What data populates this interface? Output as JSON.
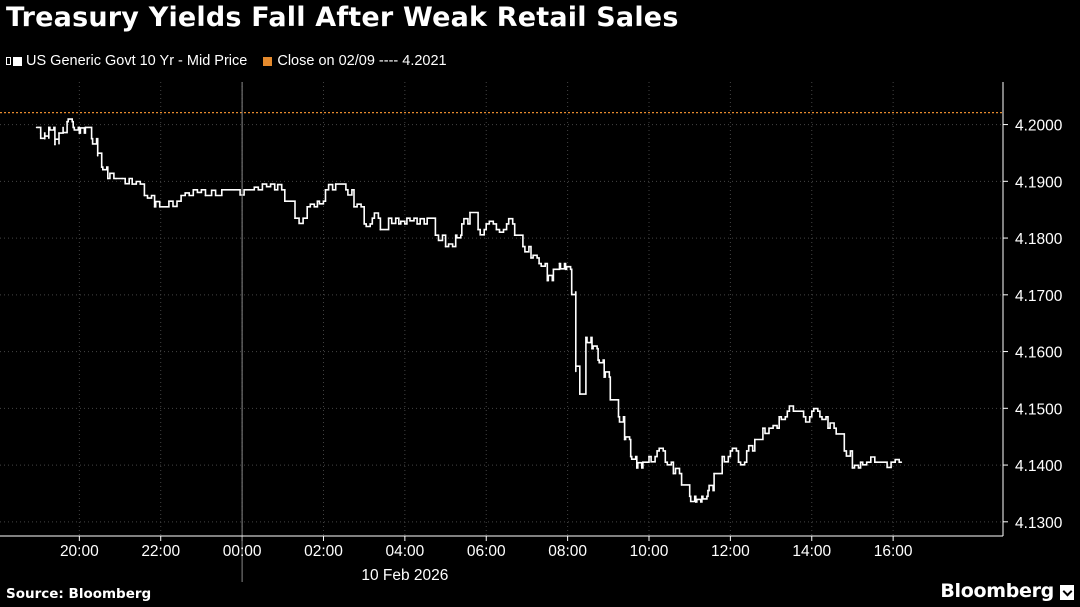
{
  "colors": {
    "background": "#000000",
    "series": "#ffffff",
    "close_line": "#e58a2d",
    "grid": "#444444"
  },
  "header": {
    "title": "Treasury Yields Fall After Weak Retail Sales"
  },
  "legend": {
    "series_label": "US Generic Govt 10 Yr - Mid Price",
    "close_label": "Close on 02/09 ---- 4.2021"
  },
  "footer": {
    "source": "Source: Bloomberg",
    "brand": "Bloomberg"
  },
  "chart_data": {
    "type": "line",
    "title": "Treasury Yields Fall After Weak Retail Sales",
    "x_unit": "hours since 20:00 on 09 Feb 2026",
    "x_ticks": [
      {
        "t": 0,
        "label": "20:00"
      },
      {
        "t": 2,
        "label": "22:00"
      },
      {
        "t": 4,
        "label": "00:00"
      },
      {
        "t": 6,
        "label": "02:00"
      },
      {
        "t": 8,
        "label": "04:00"
      },
      {
        "t": 10,
        "label": "06:00"
      },
      {
        "t": 12,
        "label": "08:00"
      },
      {
        "t": 14,
        "label": "10:00"
      },
      {
        "t": 16,
        "label": "12:00"
      },
      {
        "t": 18,
        "label": "14:00"
      },
      {
        "t": 20,
        "label": "16:00"
      }
    ],
    "date_label": "10 Feb 2026",
    "date_label_t": 8,
    "day_divider_t": 4,
    "xlim": [
      -1.95,
      22.7
    ],
    "y_ticks": [
      "4.1300",
      "4.1400",
      "4.1500",
      "4.1600",
      "4.1700",
      "4.1800",
      "4.1900",
      "4.2000"
    ],
    "ylim": [
      4.1275,
      4.2075
    ],
    "y_axis_side": "right",
    "grid": true,
    "reference_line": {
      "name": "Close on 02/09",
      "value": 4.2021
    },
    "series": [
      {
        "name": "US Generic Govt 10 Yr - Mid Price",
        "x": [
          -1.05,
          -0.95,
          -0.85,
          -0.75,
          -0.6,
          -0.5,
          -0.4,
          -0.3,
          -0.15,
          0.0,
          0.15,
          0.3,
          0.45,
          0.55,
          0.7,
          0.9,
          1.05,
          1.3,
          1.6,
          1.85,
          2.0,
          2.2,
          2.5,
          2.8,
          3.1,
          3.5,
          3.8,
          4.2,
          4.5,
          4.8,
          5.05,
          5.3,
          5.6,
          5.85,
          6.05,
          6.3,
          6.55,
          6.75,
          7.0,
          7.2,
          7.4,
          7.6,
          7.85,
          8.05,
          8.3,
          8.55,
          8.75,
          9.0,
          9.25,
          9.4,
          9.6,
          9.8,
          10.0,
          10.25,
          10.5,
          10.7,
          10.9,
          11.1,
          11.3,
          11.5,
          11.65,
          11.8,
          11.95,
          12.1,
          12.2,
          12.3,
          12.45,
          12.6,
          12.75,
          12.9,
          13.05,
          13.25,
          13.4,
          13.55,
          13.7,
          13.85,
          14.0,
          14.2,
          14.4,
          14.6,
          14.8,
          15.0,
          15.15,
          15.3,
          15.45,
          15.6,
          15.8,
          16.0,
          16.2,
          16.4,
          16.6,
          16.8,
          17.0,
          17.2,
          17.4,
          17.6,
          17.8,
          18.0,
          18.2,
          18.4,
          18.6,
          18.8,
          19.0,
          19.2,
          19.4,
          19.6,
          19.8,
          20.0,
          20.2
        ],
        "values": [
          4.1995,
          4.1985,
          4.1975,
          4.1995,
          4.1965,
          4.1985,
          4.1995,
          4.2005,
          4.1995,
          4.1985,
          4.1995,
          4.1975,
          4.1945,
          4.1925,
          4.1905,
          4.1905,
          4.1905,
          4.1895,
          4.1875,
          4.1855,
          4.1855,
          4.1865,
          4.1875,
          4.1885,
          4.1875,
          4.1885,
          4.1885,
          4.1885,
          4.1895,
          4.1885,
          4.1865,
          4.1835,
          4.1855,
          4.1865,
          4.1885,
          4.1895,
          4.1885,
          4.1855,
          4.1825,
          4.1835,
          4.1815,
          4.1835,
          4.1825,
          4.1835,
          4.1825,
          4.1835,
          4.1805,
          4.1785,
          4.1805,
          4.1825,
          4.1845,
          4.1815,
          4.1825,
          4.1815,
          4.1825,
          4.1805,
          4.1785,
          4.1765,
          4.1755,
          4.1725,
          4.1745,
          4.1755,
          4.1745,
          4.1705,
          4.1565,
          4.1525,
          4.1625,
          4.1605,
          4.1585,
          4.1555,
          4.1515,
          4.1485,
          4.1445,
          4.1415,
          4.1395,
          4.1405,
          4.1415,
          4.1425,
          4.1405,
          4.1385,
          4.1365,
          4.1345,
          4.1335,
          4.1345,
          4.1355,
          4.1385,
          4.1415,
          4.1425,
          4.1405,
          4.1425,
          4.1445,
          4.1465,
          4.1465,
          4.1485,
          4.1495,
          4.1495,
          4.1485,
          4.1495,
          4.1485,
          4.1465,
          4.1455,
          4.1425,
          4.1395,
          4.1405,
          4.1405,
          4.1405,
          4.1405,
          4.1405,
          4.1405
        ]
      }
    ]
  }
}
